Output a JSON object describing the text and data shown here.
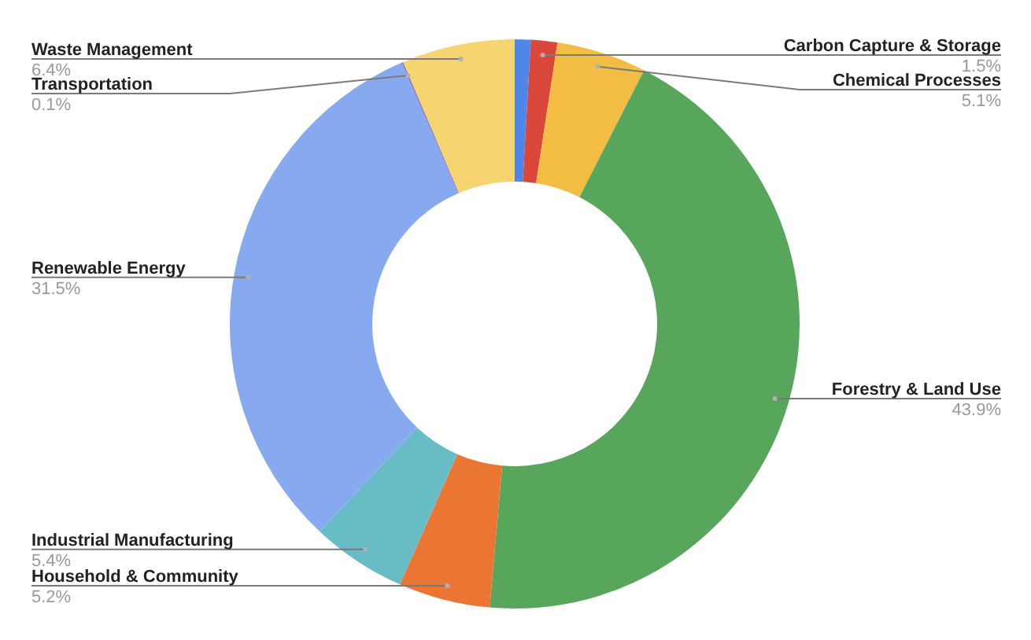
{
  "chart_data": {
    "type": "donut",
    "categories": [
      null,
      "Carbon Capture & Storage",
      "Chemical Processes",
      "Forestry & Land Use",
      "Household & Community",
      "Industrial Manufacturing",
      "Renewable Energy",
      "Transportation",
      "Waste Management"
    ],
    "values": [
      0.9,
      1.5,
      5.1,
      43.9,
      5.2,
      5.4,
      31.5,
      0.1,
      6.4
    ],
    "colors": [
      "#4f86ec",
      "#d9483b",
      "#f2bd42",
      "#58a65c",
      "#eb7532",
      "#67bcc6",
      "#86a9ef",
      "#8e7cc3",
      "#f6d46f"
    ],
    "value_labels": [
      null,
      "1.5%",
      "5.1%",
      "43.9%",
      "5.2%",
      "5.4%",
      "31.5%",
      "0.1%",
      "6.4%"
    ]
  }
}
